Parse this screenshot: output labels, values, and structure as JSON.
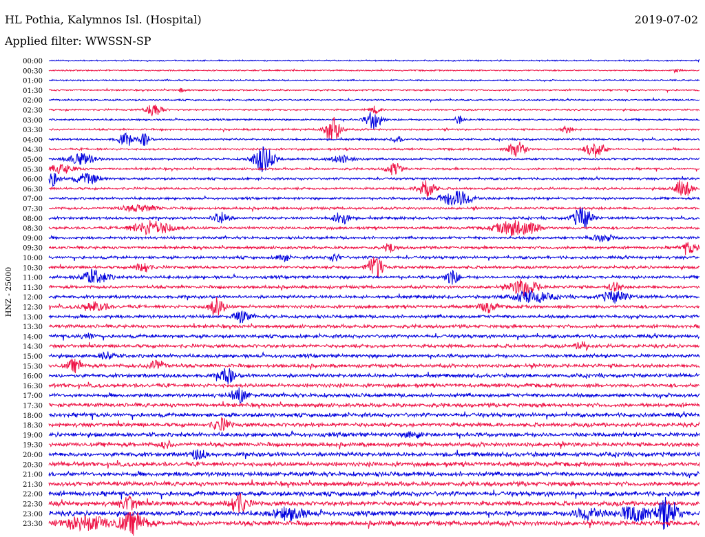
{
  "header": {
    "station": "HL Pothia, Kalymnos Isl. (Hospital)",
    "date": "2019-07-02",
    "filter": "Applied filter: WWSSN-SP"
  },
  "chart_data": {
    "type": "line",
    "ylabel": "HNZ - 25000",
    "colors": [
      "#0000dd",
      "#ee1144"
    ],
    "rows": [
      {
        "label": "00:00",
        "events": []
      },
      {
        "label": "00:30",
        "events": [
          {
            "t": 0.965,
            "a": 3,
            "w": 0.005
          }
        ]
      },
      {
        "label": "01:00",
        "events": []
      },
      {
        "label": "01:30",
        "events": [
          {
            "t": 0.205,
            "a": 3,
            "w": 0.005
          }
        ]
      },
      {
        "label": "02:00",
        "events": []
      },
      {
        "label": "02:30",
        "events": [
          {
            "t": 0.162,
            "a": 10,
            "w": 0.012
          },
          {
            "t": 0.502,
            "a": 5,
            "w": 0.008
          }
        ]
      },
      {
        "label": "03:00",
        "events": [
          {
            "t": 0.5,
            "a": 14,
            "w": 0.012
          },
          {
            "t": 0.63,
            "a": 6,
            "w": 0.006
          }
        ]
      },
      {
        "label": "03:30",
        "events": [
          {
            "t": 0.436,
            "a": 18,
            "w": 0.012
          },
          {
            "t": 0.796,
            "a": 5,
            "w": 0.008
          }
        ]
      },
      {
        "label": "04:00",
        "events": [
          {
            "t": 0.118,
            "a": 8,
            "w": 0.012
          },
          {
            "t": 0.147,
            "a": 9,
            "w": 0.008
          },
          {
            "t": 0.535,
            "a": 4,
            "w": 0.008
          }
        ]
      },
      {
        "label": "04:30",
        "events": [
          {
            "t": 0.72,
            "a": 13,
            "w": 0.012
          },
          {
            "t": 0.84,
            "a": 12,
            "w": 0.014
          }
        ]
      },
      {
        "label": "05:00",
        "events": [
          {
            "t": 0.05,
            "a": 8,
            "w": 0.02
          },
          {
            "t": 0.33,
            "a": 18,
            "w": 0.016
          },
          {
            "t": 0.45,
            "a": 5,
            "w": 0.02
          }
        ]
      },
      {
        "label": "05:30",
        "events": [
          {
            "t": 0.53,
            "a": 10,
            "w": 0.01
          },
          {
            "t": 0.02,
            "a": 6,
            "w": 0.02
          }
        ]
      },
      {
        "label": "06:00",
        "events": [
          {
            "t": 0.006,
            "a": 10,
            "w": 0.01
          },
          {
            "t": 0.06,
            "a": 7,
            "w": 0.02
          }
        ]
      },
      {
        "label": "06:30",
        "events": [
          {
            "t": 0.58,
            "a": 15,
            "w": 0.012
          },
          {
            "t": 0.975,
            "a": 14,
            "w": 0.012
          }
        ]
      },
      {
        "label": "07:00",
        "events": [
          {
            "t": 0.627,
            "a": 11,
            "w": 0.025
          }
        ]
      },
      {
        "label": "07:30",
        "events": [
          {
            "t": 0.14,
            "a": 4,
            "w": 0.03
          }
        ]
      },
      {
        "label": "08:00",
        "events": [
          {
            "t": 0.265,
            "a": 8,
            "w": 0.012
          },
          {
            "t": 0.45,
            "a": 9,
            "w": 0.012
          },
          {
            "t": 0.82,
            "a": 16,
            "w": 0.014
          }
        ]
      },
      {
        "label": "08:30",
        "events": [
          {
            "t": 0.16,
            "a": 10,
            "w": 0.03
          },
          {
            "t": 0.72,
            "a": 12,
            "w": 0.03
          }
        ]
      },
      {
        "label": "09:00",
        "events": [
          {
            "t": 0.85,
            "a": 4,
            "w": 0.02
          }
        ]
      },
      {
        "label": "09:30",
        "events": [
          {
            "t": 0.525,
            "a": 7,
            "w": 0.008
          },
          {
            "t": 0.985,
            "a": 8,
            "w": 0.012
          }
        ]
      },
      {
        "label": "10:00",
        "events": [
          {
            "t": 0.36,
            "a": 6,
            "w": 0.008
          },
          {
            "t": 0.44,
            "a": 5,
            "w": 0.008
          }
        ]
      },
      {
        "label": "10:30",
        "events": [
          {
            "t": 0.145,
            "a": 9,
            "w": 0.01
          },
          {
            "t": 0.502,
            "a": 16,
            "w": 0.012
          }
        ]
      },
      {
        "label": "11:00",
        "events": [
          {
            "t": 0.07,
            "a": 10,
            "w": 0.02
          },
          {
            "t": 0.62,
            "a": 10,
            "w": 0.01
          }
        ]
      },
      {
        "label": "11:30",
        "events": [
          {
            "t": 0.73,
            "a": 12,
            "w": 0.02
          },
          {
            "t": 0.87,
            "a": 6,
            "w": 0.01
          }
        ]
      },
      {
        "label": "12:00",
        "events": [
          {
            "t": 0.74,
            "a": 8,
            "w": 0.03
          },
          {
            "t": 0.87,
            "a": 8,
            "w": 0.02
          }
        ]
      },
      {
        "label": "12:30",
        "events": [
          {
            "t": 0.07,
            "a": 6,
            "w": 0.02
          },
          {
            "t": 0.258,
            "a": 12,
            "w": 0.012
          },
          {
            "t": 0.675,
            "a": 8,
            "w": 0.012
          }
        ]
      },
      {
        "label": "13:00",
        "events": [
          {
            "t": 0.296,
            "a": 8,
            "w": 0.012
          }
        ]
      },
      {
        "label": "13:30",
        "events": []
      },
      {
        "label": "14:00",
        "events": [
          {
            "t": 0.06,
            "a": 4,
            "w": 0.01
          }
        ]
      },
      {
        "label": "14:30",
        "events": [
          {
            "t": 0.82,
            "a": 8,
            "w": 0.008
          }
        ]
      },
      {
        "label": "15:00",
        "events": [
          {
            "t": 0.09,
            "a": 6,
            "w": 0.01
          }
        ]
      },
      {
        "label": "15:30",
        "events": [
          {
            "t": 0.04,
            "a": 8,
            "w": 0.012
          },
          {
            "t": 0.165,
            "a": 8,
            "w": 0.012
          }
        ]
      },
      {
        "label": "16:00",
        "events": [
          {
            "t": 0.273,
            "a": 11,
            "w": 0.012
          }
        ]
      },
      {
        "label": "16:30",
        "events": []
      },
      {
        "label": "17:00",
        "events": [
          {
            "t": 0.293,
            "a": 10,
            "w": 0.012
          }
        ]
      },
      {
        "label": "17:30",
        "events": []
      },
      {
        "label": "18:00",
        "events": []
      },
      {
        "label": "18:30",
        "events": [
          {
            "t": 0.265,
            "a": 8,
            "w": 0.012
          }
        ]
      },
      {
        "label": "19:00",
        "events": [
          {
            "t": 0.56,
            "a": 6,
            "w": 0.01
          }
        ]
      },
      {
        "label": "19:30",
        "events": [
          {
            "t": 0.18,
            "a": 5,
            "w": 0.008
          }
        ]
      },
      {
        "label": "20:00",
        "events": [
          {
            "t": 0.23,
            "a": 7,
            "w": 0.01
          }
        ]
      },
      {
        "label": "20:30",
        "events": []
      },
      {
        "label": "21:00",
        "events": []
      },
      {
        "label": "21:30",
        "events": []
      },
      {
        "label": "22:00",
        "events": []
      },
      {
        "label": "22:30",
        "events": [
          {
            "t": 0.124,
            "a": 11,
            "w": 0.012
          },
          {
            "t": 0.29,
            "a": 14,
            "w": 0.014
          }
        ]
      },
      {
        "label": "23:00",
        "events": [
          {
            "t": 0.37,
            "a": 8,
            "w": 0.025
          },
          {
            "t": 0.83,
            "a": 9,
            "w": 0.02
          },
          {
            "t": 0.9,
            "a": 12,
            "w": 0.02
          },
          {
            "t": 0.95,
            "a": 22,
            "w": 0.016
          }
        ]
      },
      {
        "label": "23:30",
        "events": [
          {
            "t": 0.06,
            "a": 10,
            "w": 0.035
          },
          {
            "t": 0.13,
            "a": 14,
            "w": 0.02
          }
        ]
      }
    ]
  }
}
